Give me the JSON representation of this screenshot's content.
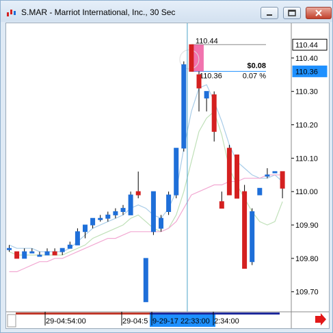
{
  "window": {
    "title": "S.MAR - Marriot International, Inc., 30 Sec",
    "buttons": [
      "minimize",
      "restore",
      "close"
    ]
  },
  "colors": {
    "up": "#1e6fd9",
    "down": "#d42020",
    "fast_ma": "#a8cce8",
    "mid_ma": "#bfe0b8",
    "slow_ma": "#f2a8d2",
    "highlight_bg": "#1e90ff",
    "crosshair": "#4aa3c8",
    "measure": "#1e90ff"
  },
  "chart_data": {
    "type": "candlestick",
    "symbol": "S.MAR",
    "ylim": [
      109.64,
      110.5
    ],
    "yticks": [
      "110.40",
      "110.30",
      "110.20",
      "110.10",
      "110.00",
      "109.90",
      "109.80",
      "109.70"
    ],
    "price_labels": [
      {
        "value": 110.44,
        "text": "110.44",
        "style": "normal"
      },
      {
        "value": 110.36,
        "text": "110.36",
        "style": "highlight"
      }
    ],
    "xticks": [
      "29-04:54:00",
      "29-04:5",
      "9-29-17 22:33:00",
      "2:34:00"
    ],
    "candles": [
      {
        "o": 109.83,
        "h": 109.84,
        "l": 109.82,
        "c": 109.83
      },
      {
        "o": 109.82,
        "h": 109.82,
        "l": 109.8,
        "c": 109.8
      },
      {
        "o": 109.8,
        "h": 109.83,
        "l": 109.8,
        "c": 109.82
      },
      {
        "o": 109.82,
        "h": 109.83,
        "l": 109.82,
        "c": 109.82
      },
      {
        "o": 109.81,
        "h": 109.82,
        "l": 109.81,
        "c": 109.81
      },
      {
        "o": 109.81,
        "h": 109.83,
        "l": 109.81,
        "c": 109.82
      },
      {
        "o": 109.82,
        "h": 109.83,
        "l": 109.81,
        "c": 109.81
      },
      {
        "o": 109.82,
        "h": 109.83,
        "l": 109.81,
        "c": 109.83
      },
      {
        "o": 109.83,
        "h": 109.85,
        "l": 109.83,
        "c": 109.84
      },
      {
        "o": 109.84,
        "h": 109.89,
        "l": 109.84,
        "c": 109.88
      },
      {
        "o": 109.88,
        "h": 109.9,
        "l": 109.86,
        "c": 109.9
      },
      {
        "o": 109.9,
        "h": 109.92,
        "l": 109.89,
        "c": 109.92
      },
      {
        "o": 109.92,
        "h": 109.93,
        "l": 109.91,
        "c": 109.92
      },
      {
        "o": 109.92,
        "h": 109.94,
        "l": 109.91,
        "c": 109.93
      },
      {
        "o": 109.93,
        "h": 109.95,
        "l": 109.92,
        "c": 109.94
      },
      {
        "o": 109.94,
        "h": 109.96,
        "l": 109.93,
        "c": 109.95
      },
      {
        "o": 109.93,
        "h": 110.0,
        "l": 109.93,
        "c": 109.99
      },
      {
        "o": 110.0,
        "h": 110.06,
        "l": 109.98,
        "c": 109.99
      },
      {
        "o": 109.67,
        "h": 109.8,
        "l": 109.67,
        "c": 109.8
      },
      {
        "o": 109.88,
        "h": 110.0,
        "l": 109.87,
        "c": 110.0
      },
      {
        "o": 109.89,
        "h": 109.93,
        "l": 109.88,
        "c": 109.92
      },
      {
        "o": 109.94,
        "h": 110.0,
        "l": 109.93,
        "c": 109.99
      },
      {
        "o": 109.99,
        "h": 110.13,
        "l": 109.98,
        "c": 110.13
      },
      {
        "o": 110.13,
        "h": 110.39,
        "l": 110.12,
        "c": 110.38
      },
      {
        "o": 110.44,
        "h": 110.44,
        "l": 110.36,
        "c": 110.36
      },
      {
        "o": 110.35,
        "h": 110.36,
        "l": 110.24,
        "c": 110.31
      },
      {
        "o": 110.28,
        "h": 110.3,
        "l": 110.24,
        "c": 110.3
      },
      {
        "o": 110.29,
        "h": 110.3,
        "l": 110.15,
        "c": 110.18
      },
      {
        "o": 109.97,
        "h": 110.0,
        "l": 109.95,
        "c": 109.95
      },
      {
        "o": 110.13,
        "h": 110.14,
        "l": 109.99,
        "c": 109.99
      },
      {
        "o": 110.11,
        "h": 110.11,
        "l": 109.98,
        "c": 109.98
      },
      {
        "o": 110.0,
        "h": 110.02,
        "l": 109.77,
        "c": 109.77
      },
      {
        "o": 109.79,
        "h": 109.95,
        "l": 109.78,
        "c": 109.94
      },
      {
        "o": 109.99,
        "h": 110.01,
        "l": 109.99,
        "c": 110.01
      },
      {
        "o": 110.05,
        "h": 110.07,
        "l": 110.04,
        "c": 110.05
      },
      {
        "o": 110.06,
        "h": 110.06,
        "l": 110.06,
        "c": 110.06
      },
      {
        "o": 110.06,
        "h": 110.06,
        "l": 109.98,
        "c": 110.01
      }
    ],
    "moving_averages": [
      {
        "color": "fast_ma",
        "values": [
          109.84,
          109.83,
          109.83,
          109.83,
          109.82,
          109.82,
          109.82,
          109.82,
          109.83,
          109.85,
          109.87,
          109.89,
          109.9,
          109.91,
          109.92,
          109.93,
          109.95,
          109.96,
          109.95,
          109.93,
          109.92,
          109.95,
          110.0,
          110.13,
          110.24,
          110.31,
          110.32,
          110.27,
          110.21,
          110.14,
          110.09,
          110.07,
          110.05,
          110.04,
          110.04,
          110.05,
          110.03
        ]
      },
      {
        "color": "mid_ma",
        "values": [
          109.82,
          109.81,
          109.81,
          109.81,
          109.81,
          109.81,
          109.81,
          109.81,
          109.82,
          109.83,
          109.84,
          109.86,
          109.87,
          109.88,
          109.89,
          109.9,
          109.92,
          109.93,
          109.91,
          109.89,
          109.88,
          109.89,
          109.93,
          110.0,
          110.09,
          110.18,
          110.22,
          110.24,
          110.17,
          110.07,
          110.02,
          109.98,
          109.94,
          109.91,
          109.9,
          109.91,
          109.97
        ]
      },
      {
        "color": "slow_ma",
        "values": [
          109.76,
          109.76,
          109.77,
          109.78,
          109.79,
          109.79,
          109.8,
          109.8,
          109.81,
          109.82,
          109.83,
          109.84,
          109.85,
          109.86,
          109.86,
          109.87,
          109.88,
          109.88,
          109.88,
          109.88,
          109.88,
          109.89,
          109.91,
          109.95,
          109.99,
          110.0,
          110.01,
          110.02,
          110.02,
          110.03,
          110.03,
          110.04,
          110.04,
          110.04,
          110.05,
          110.05,
          110.05
        ]
      }
    ],
    "measurement": {
      "value_text": "$0.08",
      "percent_text": "0.07 %",
      "from_text": "110.44",
      "to_text": "110.36",
      "from": 110.44,
      "to": 110.36
    }
  }
}
